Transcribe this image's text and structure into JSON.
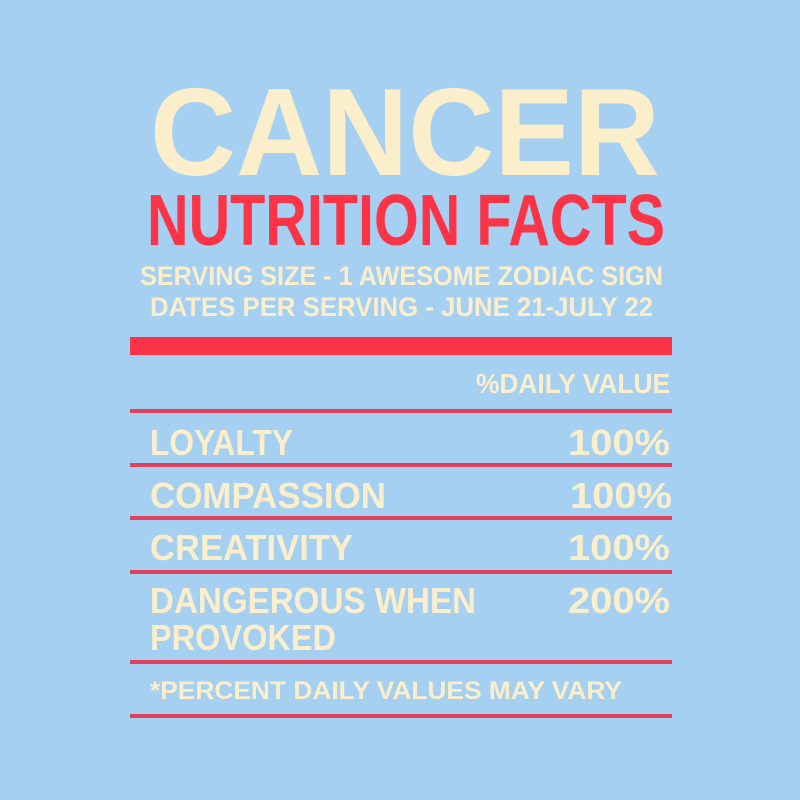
{
  "title": "CANCER",
  "subtitle": "NUTRITION FACTS",
  "serving_size": "SERVING SIZE - 1 AWESOME ZODIAC SIGN",
  "dates_per_serving": "DATES PER SERVING - JUNE 21-JULY 22",
  "daily_value_header": "%DAILY VALUE",
  "rows": [
    {
      "label": "LOYALTY",
      "value": "100%"
    },
    {
      "label": "COMPASSION",
      "value": "100%"
    },
    {
      "label": "CREATIVITY",
      "value": "100%"
    },
    {
      "label_line1": "DANGEROUS WHEN",
      "label_line2": "PROVOKED",
      "value": "200%"
    }
  ],
  "footnote": "*PERCENT DAILY VALUES MAY VARY",
  "colors": {
    "background": "#a6d0f2",
    "cream": "#fbeecb",
    "red": "#fb3448"
  }
}
